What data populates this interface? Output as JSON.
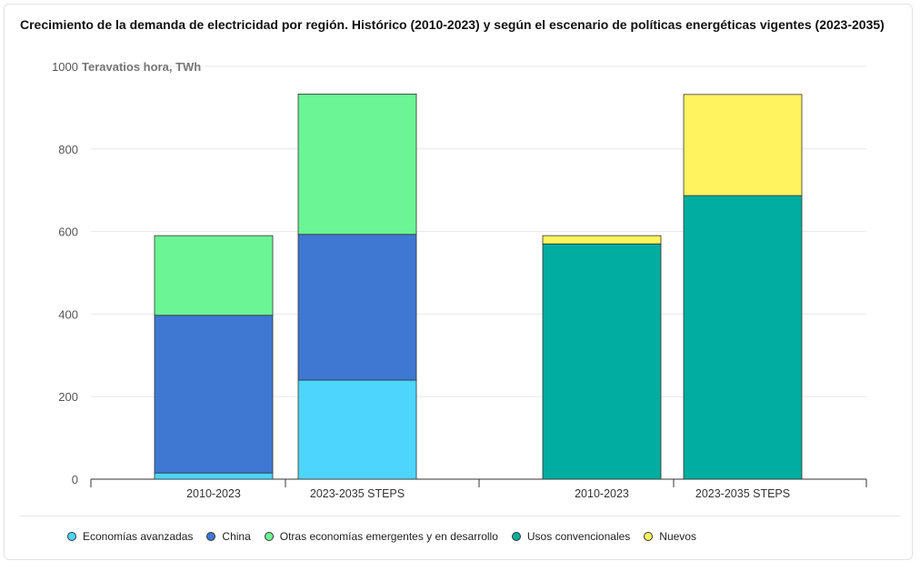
{
  "title": "Crecimiento de la demanda de electricidad por región. Histórico (2010-2023) y según el escenario de políticas energéticas vigentes (2023-2035)",
  "chart_data": [
    {
      "type": "bar",
      "stacked": true,
      "categories": [
        "2010-2023",
        "2023-2035 STEPS"
      ],
      "ylabel": "Teravatios hora, TWh",
      "ylim": [
        0,
        1000
      ],
      "yticks": [
        0,
        200,
        400,
        600,
        800,
        1000
      ],
      "grid": true,
      "series": [
        {
          "name": "Economías avanzadas",
          "color": "#4dd5fd",
          "values": [
            15,
            240
          ]
        },
        {
          "name": "China",
          "color": "#3f78d3",
          "values": [
            382,
            353
          ]
        },
        {
          "name": "Otras economías emergentes y en desarrollo",
          "color": "#6bf594",
          "values": [
            193,
            340
          ]
        }
      ]
    },
    {
      "type": "bar",
      "stacked": true,
      "categories": [
        "2010-2023",
        "2023-2035 STEPS"
      ],
      "ylim": [
        0,
        1000
      ],
      "grid": true,
      "series": [
        {
          "name": "Usos convencionales",
          "color": "#00ad9f",
          "values": [
            570,
            687
          ]
        },
        {
          "name": "Nuevos",
          "color": "#fff35f",
          "values": [
            20,
            245
          ]
        }
      ]
    }
  ],
  "legend": [
    {
      "label": "Economías avanzadas",
      "color": "#4dd5fd"
    },
    {
      "label": "China",
      "color": "#3f78d3"
    },
    {
      "label": "Otras economías emergentes y en desarrollo",
      "color": "#6bf594"
    },
    {
      "label": "Usos convencionales",
      "color": "#00ad9f"
    },
    {
      "label": "Nuevos",
      "color": "#fff35f"
    }
  ]
}
